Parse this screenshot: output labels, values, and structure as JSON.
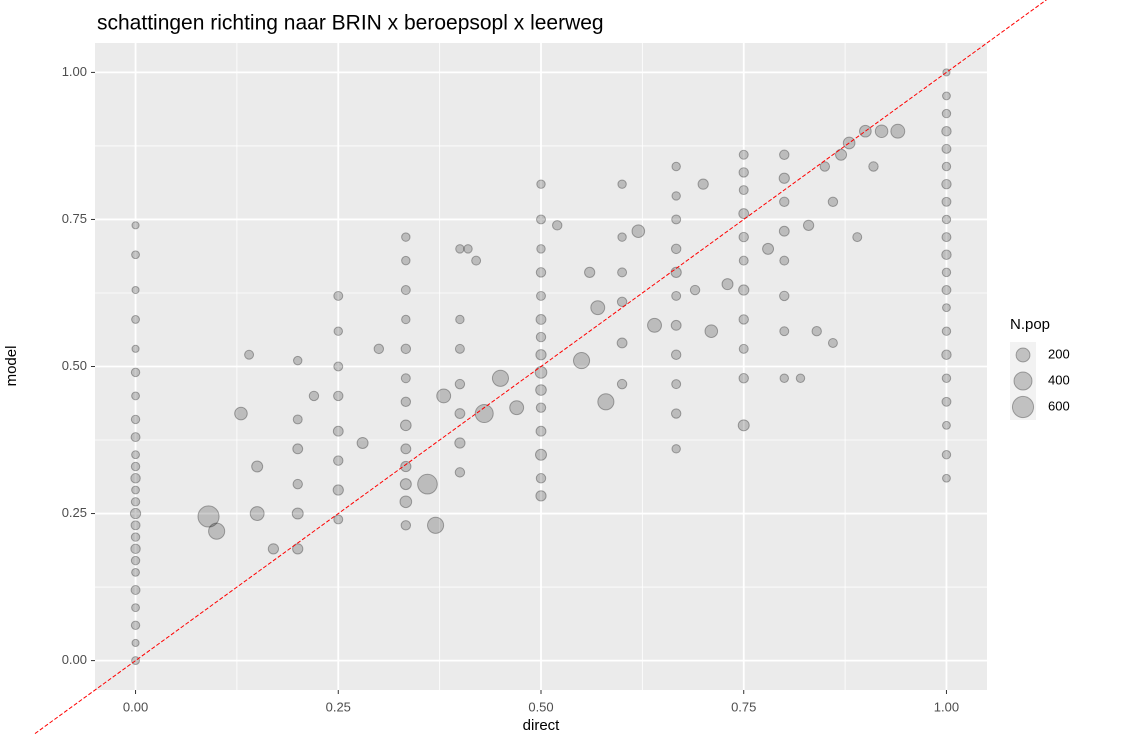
{
  "chart_data": {
    "type": "scatter",
    "title": "schattingen richting naar BRIN x beroepsopl x leerweg",
    "x_label": "direct",
    "y_label": "model",
    "xlim": [
      -0.05,
      1.05
    ],
    "ylim": [
      -0.05,
      1.05
    ],
    "xticks": [
      {
        "value": 0,
        "label": "0.00"
      },
      0.25,
      {
        "value": 0.5,
        "label": "0.50"
      },
      0.75,
      {
        "value": 1,
        "label": "1.00"
      }
    ],
    "yticks": [
      {
        "value": 0,
        "label": "0.00"
      },
      0.25,
      {
        "value": 0.5,
        "label": "0.50"
      },
      0.75,
      {
        "value": 1,
        "label": "1.00"
      }
    ],
    "grid": true,
    "minor_grid": true,
    "point_color": "#000000",
    "abline": {
      "intercept": 0,
      "slope": 1,
      "color": "#ff0000"
    },
    "size_legend": {
      "title": "N.pop",
      "values": [
        200,
        400,
        600
      ]
    },
    "x": [
      0,
      0,
      0,
      0,
      0,
      0,
      0,
      0,
      0,
      0,
      0,
      0,
      0,
      0,
      0,
      0,
      0,
      0,
      0,
      0,
      0,
      0,
      0,
      0,
      0,
      1,
      1,
      1,
      1,
      1,
      1,
      1,
      1,
      1,
      1,
      1,
      1,
      1,
      1,
      1,
      1,
      1,
      1,
      1,
      1,
      1,
      0.5,
      0.5,
      0.5,
      0.5,
      0.5,
      0.5,
      0.5,
      0.5,
      0.5,
      0.5,
      0.5,
      0.5,
      0.5,
      0.5,
      0.5,
      0.3333,
      0.3333,
      0.3333,
      0.3333,
      0.3333,
      0.3333,
      0.3333,
      0.3333,
      0.3333,
      0.3333,
      0.3333,
      0.3333,
      0.3333,
      0.6667,
      0.6667,
      0.6667,
      0.6667,
      0.6667,
      0.6667,
      0.6667,
      0.6667,
      0.6667,
      0.6667,
      0.6667,
      0.75,
      0.75,
      0.75,
      0.75,
      0.75,
      0.75,
      0.75,
      0.75,
      0.75,
      0.75,
      0.75,
      0.25,
      0.25,
      0.25,
      0.25,
      0.25,
      0.25,
      0.25,
      0.25,
      0.2,
      0.2,
      0.2,
      0.2,
      0.2,
      0.2,
      0.8,
      0.8,
      0.8,
      0.8,
      0.8,
      0.8,
      0.8,
      0.8,
      0.4,
      0.4,
      0.4,
      0.4,
      0.4,
      0.4,
      0.4,
      0.6,
      0.6,
      0.6,
      0.6,
      0.6,
      0.6,
      0.09,
      0.1,
      0.13,
      0.15,
      0.15,
      0.17,
      0.14,
      0.22,
      0.28,
      0.3,
      0.36,
      0.37,
      0.38,
      0.43,
      0.45,
      0.47,
      0.55,
      0.57,
      0.58,
      0.62,
      0.64,
      0.71,
      0.73,
      0.78,
      0.83,
      0.85,
      0.87,
      0.88,
      0.9,
      0.92,
      0.94,
      0.86,
      0.84,
      0.86,
      0.82,
      0.7,
      0.69,
      0.56,
      0.52,
      0.42,
      0.41,
      0.91,
      0.89
    ],
    "y": [
      0,
      0.03,
      0.06,
      0.09,
      0.12,
      0.15,
      0.17,
      0.19,
      0.21,
      0.23,
      0.25,
      0.27,
      0.29,
      0.31,
      0.33,
      0.35,
      0.38,
      0.41,
      0.45,
      0.49,
      0.53,
      0.58,
      0.63,
      0.69,
      0.74,
      1,
      0.31,
      0.35,
      0.4,
      0.44,
      0.48,
      0.52,
      0.56,
      0.6,
      0.63,
      0.66,
      0.69,
      0.72,
      0.75,
      0.78,
      0.81,
      0.84,
      0.87,
      0.9,
      0.93,
      0.96,
      0.28,
      0.31,
      0.35,
      0.39,
      0.43,
      0.46,
      0.49,
      0.52,
      0.55,
      0.58,
      0.62,
      0.66,
      0.7,
      0.75,
      0.81,
      0.23,
      0.27,
      0.3,
      0.33,
      0.36,
      0.4,
      0.44,
      0.48,
      0.53,
      0.58,
      0.63,
      0.68,
      0.72,
      0.36,
      0.42,
      0.47,
      0.52,
      0.57,
      0.62,
      0.66,
      0.7,
      0.75,
      0.79,
      0.84,
      0.4,
      0.48,
      0.53,
      0.58,
      0.63,
      0.68,
      0.72,
      0.76,
      0.8,
      0.83,
      0.86,
      0.24,
      0.29,
      0.34,
      0.39,
      0.45,
      0.5,
      0.56,
      0.62,
      0.19,
      0.25,
      0.3,
      0.36,
      0.41,
      0.51,
      0.48,
      0.56,
      0.62,
      0.68,
      0.73,
      0.78,
      0.82,
      0.86,
      0.32,
      0.37,
      0.42,
      0.47,
      0.53,
      0.58,
      0.7,
      0.47,
      0.54,
      0.61,
      0.66,
      0.72,
      0.81,
      0.245,
      0.22,
      0.42,
      0.33,
      0.25,
      0.19,
      0.52,
      0.45,
      0.37,
      0.53,
      0.3,
      0.23,
      0.45,
      0.42,
      0.48,
      0.43,
      0.51,
      0.6,
      0.44,
      0.73,
      0.57,
      0.56,
      0.64,
      0.7,
      0.74,
      0.84,
      0.86,
      0.88,
      0.9,
      0.9,
      0.9,
      0.78,
      0.56,
      0.54,
      0.48,
      0.81,
      0.63,
      0.66,
      0.74,
      0.68,
      0.7,
      0.84,
      0.72
    ],
    "sizes": [
      30,
      20,
      40,
      30,
      50,
      30,
      40,
      60,
      40,
      50,
      80,
      40,
      30,
      60,
      40,
      30,
      50,
      40,
      30,
      40,
      20,
      30,
      20,
      30,
      20,
      20,
      30,
      40,
      30,
      50,
      40,
      60,
      40,
      30,
      50,
      40,
      60,
      50,
      40,
      50,
      60,
      40,
      50,
      60,
      40,
      30,
      80,
      60,
      100,
      70,
      60,
      90,
      120,
      80,
      60,
      70,
      50,
      60,
      40,
      50,
      40,
      60,
      120,
      100,
      80,
      70,
      90,
      60,
      50,
      60,
      40,
      50,
      40,
      40,
      40,
      60,
      50,
      60,
      70,
      50,
      80,
      60,
      50,
      40,
      40,
      100,
      60,
      50,
      60,
      80,
      50,
      60,
      70,
      50,
      60,
      50,
      50,
      80,
      60,
      70,
      60,
      50,
      40,
      50,
      80,
      100,
      60,
      70,
      50,
      40,
      40,
      50,
      60,
      50,
      70,
      60,
      80,
      60,
      60,
      80,
      70,
      60,
      50,
      40,
      40,
      60,
      70,
      60,
      50,
      40,
      40,
      600,
      300,
      150,
      100,
      200,
      80,
      50,
      60,
      100,
      60,
      500,
      300,
      200,
      400,
      300,
      200,
      300,
      200,
      300,
      150,
      200,
      150,
      100,
      100,
      80,
      60,
      100,
      120,
      120,
      150,
      200,
      60,
      60,
      50,
      40,
      80,
      60,
      80,
      60,
      50,
      40,
      60,
      50
    ]
  }
}
